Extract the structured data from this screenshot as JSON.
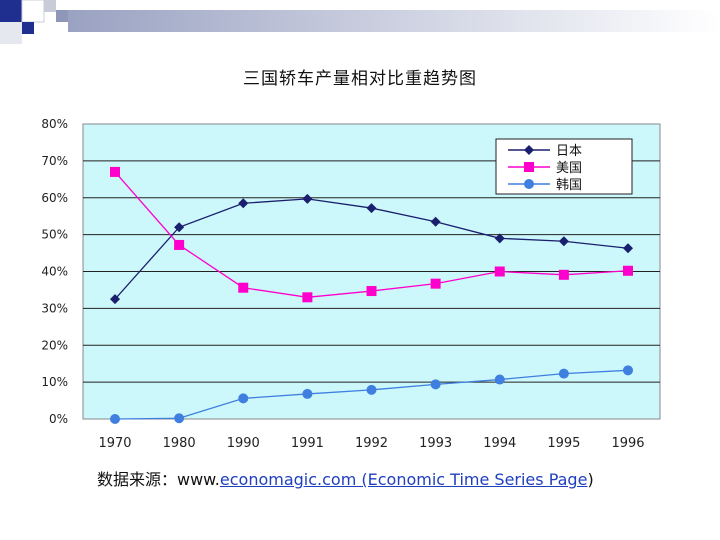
{
  "slide": {
    "title": "三国轿车产量相对比重趋势图",
    "source_label": "数据来源：www.",
    "source_link": "economagic.com (Economic Time Series Page",
    "source_end": ")"
  },
  "colors": {
    "plot_bg": "#ccf7fb",
    "japan": "#1a1f6e",
    "usa": "#ff00cc",
    "korea": "#3f7fe0",
    "corner_blue": "#1f2f8f"
  },
  "chart_data": {
    "type": "line",
    "title": "",
    "xlabel": "",
    "ylabel": "",
    "categories": [
      "1970",
      "1980",
      "1990",
      "1991",
      "1992",
      "1993",
      "1994",
      "1995",
      "1996"
    ],
    "ylim": [
      0,
      80
    ],
    "yticks": [
      "0%",
      "10%",
      "20%",
      "30%",
      "40%",
      "50%",
      "60%",
      "70%",
      "80%"
    ],
    "grid": true,
    "legend": "top-right",
    "series": [
      {
        "name": "日本",
        "marker": "diamond",
        "color": "#1a1f6e",
        "values": [
          32.5,
          52,
          58.5,
          59.7,
          57.2,
          53.5,
          49,
          48.2,
          46.3
        ]
      },
      {
        "name": "美国",
        "marker": "square",
        "color": "#ff00cc",
        "values": [
          67,
          47.2,
          35.6,
          33,
          34.7,
          36.7,
          40,
          39.1,
          40.2
        ]
      },
      {
        "name": "韩国",
        "marker": "circle",
        "color": "#3f7fe0",
        "values": [
          0,
          0.2,
          5.6,
          6.8,
          7.9,
          9.4,
          10.7,
          12.3,
          13.2
        ]
      }
    ]
  }
}
